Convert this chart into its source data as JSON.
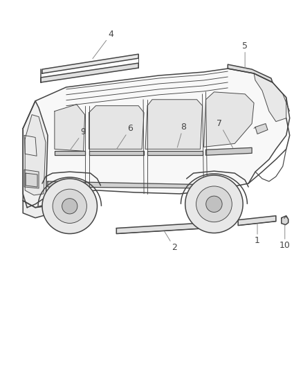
{
  "background_color": "#ffffff",
  "line_color": "#444444",
  "label_color": "#444444",
  "figsize": [
    4.38,
    5.33
  ],
  "dpi": 100,
  "lw_main": 1.1,
  "lw_thin": 0.65,
  "lw_med": 0.85
}
